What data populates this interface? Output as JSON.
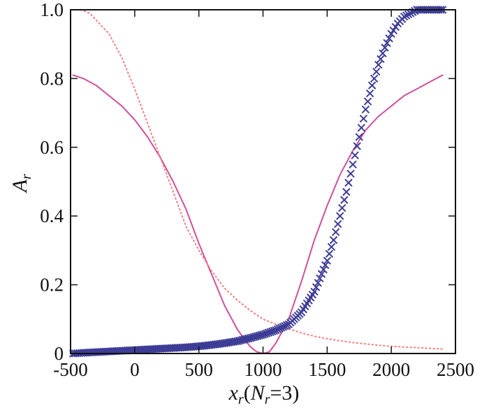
{
  "chart_data": {
    "type": "line",
    "title": "",
    "xlabel": {
      "main": "x",
      "sub": "r",
      "paren_open": "(",
      "n_main": "N",
      "n_sub": "r",
      "rest": "=3)"
    },
    "ylabel": {
      "main": "A",
      "sub": "r"
    },
    "xlim": [
      -500,
      2500
    ],
    "ylim": [
      0,
      1.0
    ],
    "xticks": [
      -500,
      0,
      500,
      1000,
      1500,
      2000,
      2500
    ],
    "xtick_labels": [
      "-500",
      "0",
      "500",
      "1000",
      "1500",
      "2000",
      "2500"
    ],
    "yticks": [
      0,
      0.2,
      0.4,
      0.6,
      0.8,
      1.0
    ],
    "ytick_labels": [
      "0",
      "0.2",
      "0.4",
      "0.6",
      "0.8",
      "1.0"
    ],
    "grid": false,
    "legend": "none",
    "series": [
      {
        "style": "solid",
        "color": "#d0509a",
        "x": [
          -480,
          -400,
          -300,
          -200,
          -100,
          0,
          100,
          200,
          300,
          400,
          500,
          600,
          700,
          800,
          900,
          950,
          1000,
          1050,
          1100,
          1200,
          1300,
          1400,
          1500,
          1600,
          1700,
          1800,
          1900,
          2000,
          2100,
          2200,
          2300,
          2400
        ],
        "y": [
          0.81,
          0.8,
          0.78,
          0.75,
          0.72,
          0.68,
          0.63,
          0.57,
          0.5,
          0.42,
          0.32,
          0.23,
          0.14,
          0.07,
          0.02,
          0.005,
          0.0,
          0.005,
          0.03,
          0.1,
          0.21,
          0.33,
          0.43,
          0.52,
          0.59,
          0.65,
          0.69,
          0.72,
          0.75,
          0.77,
          0.79,
          0.81
        ]
      },
      {
        "style": "dotted",
        "color": "#f08080",
        "x": [
          -480,
          -420,
          -350,
          -300,
          -200,
          -100,
          0,
          100,
          200,
          300,
          400,
          500,
          600,
          700,
          800,
          900,
          1000,
          1100,
          1200,
          1300,
          1400,
          1500,
          1600,
          1700,
          1800,
          1900,
          2000,
          2100,
          2200,
          2300,
          2400
        ],
        "y": [
          1.0,
          1.0,
          0.99,
          0.97,
          0.93,
          0.86,
          0.77,
          0.67,
          0.57,
          0.47,
          0.37,
          0.3,
          0.24,
          0.19,
          0.155,
          0.125,
          0.1,
          0.085,
          0.072,
          0.06,
          0.05,
          0.043,
          0.037,
          0.032,
          0.028,
          0.024,
          0.021,
          0.019,
          0.017,
          0.015,
          0.013
        ]
      },
      {
        "style": "x-markers",
        "color": "#3d3d96",
        "x": [
          -480,
          -400,
          -300,
          -200,
          -100,
          0,
          100,
          200,
          300,
          400,
          500,
          600,
          700,
          800,
          900,
          1000,
          1100,
          1200,
          1300,
          1400,
          1500,
          1550,
          1600,
          1650,
          1700,
          1750,
          1800,
          1850,
          1900,
          1950,
          2000,
          2050,
          2100,
          2150,
          2200,
          2250,
          2300,
          2350,
          2400
        ],
        "y": [
          0.0,
          0.002,
          0.004,
          0.006,
          0.008,
          0.01,
          0.012,
          0.014,
          0.016,
          0.018,
          0.021,
          0.025,
          0.03,
          0.036,
          0.045,
          0.055,
          0.068,
          0.085,
          0.12,
          0.18,
          0.27,
          0.33,
          0.4,
          0.47,
          0.55,
          0.63,
          0.71,
          0.78,
          0.84,
          0.89,
          0.93,
          0.96,
          0.98,
          0.99,
          1.0,
          1.0,
          1.0,
          1.0,
          1.0
        ]
      }
    ]
  }
}
